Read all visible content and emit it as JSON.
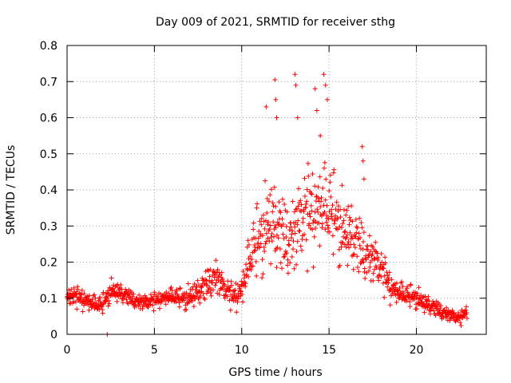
{
  "chart_data": {
    "type": "scatter",
    "title": "Day 009 of 2021, SRMTID for receiver sthg",
    "xlabel": "GPS time / hours",
    "ylabel": "SRMTID / TECUs",
    "xlim": [
      0,
      24
    ],
    "ylim": [
      0,
      0.8
    ],
    "xticks": [
      "0",
      "5",
      "10",
      "15",
      "20"
    ],
    "xtick_values": [
      0,
      5,
      10,
      15,
      20
    ],
    "yticks": [
      "0",
      "0.1",
      "0.2",
      "0.3",
      "0.4",
      "0.5",
      "0.6",
      "0.7",
      "0.8"
    ],
    "ytick_values": [
      0,
      0.1,
      0.2,
      0.3,
      0.4,
      0.5,
      0.6,
      0.7,
      0.8
    ],
    "grid": true,
    "marker": "+",
    "series_color": "#ff0000",
    "series": [
      {
        "name": "SRMTID",
        "envelope_hours": [
          0,
          0.5,
          1,
          1.5,
          2,
          2.5,
          3,
          3.5,
          4,
          4.5,
          5,
          5.5,
          6,
          6.5,
          7,
          7.5,
          8,
          8.5,
          9,
          9.5,
          10,
          10.5,
          11,
          11.5,
          12,
          12.5,
          13,
          13.5,
          14,
          14.5,
          15,
          15.5,
          16,
          16.5,
          17,
          17.5,
          18,
          18.5,
          19,
          19.5,
          20,
          20.5,
          21,
          21.5,
          22,
          22.5,
          23
        ],
        "envelope_median": [
          0.11,
          0.1,
          0.095,
          0.08,
          0.075,
          0.12,
          0.11,
          0.1,
          0.09,
          0.085,
          0.09,
          0.1,
          0.1,
          0.095,
          0.1,
          0.11,
          0.13,
          0.16,
          0.12,
          0.1,
          0.12,
          0.2,
          0.25,
          0.3,
          0.27,
          0.25,
          0.27,
          0.3,
          0.33,
          0.34,
          0.32,
          0.3,
          0.27,
          0.24,
          0.22,
          0.2,
          0.17,
          0.13,
          0.11,
          0.1,
          0.1,
          0.08,
          0.07,
          0.06,
          0.05,
          0.04,
          0.07
        ],
        "envelope_spread": [
          0.03,
          0.03,
          0.035,
          0.03,
          0.03,
          0.035,
          0.03,
          0.025,
          0.025,
          0.025,
          0.025,
          0.025,
          0.03,
          0.03,
          0.04,
          0.04,
          0.05,
          0.06,
          0.04,
          0.04,
          0.06,
          0.09,
          0.12,
          0.14,
          0.13,
          0.12,
          0.13,
          0.14,
          0.15,
          0.15,
          0.14,
          0.13,
          0.11,
          0.1,
          0.09,
          0.08,
          0.06,
          0.05,
          0.04,
          0.035,
          0.035,
          0.03,
          0.025,
          0.025,
          0.02,
          0.02,
          0.02
        ],
        "outliers": [
          {
            "x": 11.4,
            "y": 0.63
          },
          {
            "x": 11.9,
            "y": 0.705
          },
          {
            "x": 11.95,
            "y": 0.65
          },
          {
            "x": 12.0,
            "y": 0.6
          },
          {
            "x": 13.05,
            "y": 0.72
          },
          {
            "x": 13.1,
            "y": 0.69
          },
          {
            "x": 13.2,
            "y": 0.6
          },
          {
            "x": 14.2,
            "y": 0.68
          },
          {
            "x": 14.3,
            "y": 0.62
          },
          {
            "x": 14.7,
            "y": 0.72
          },
          {
            "x": 14.8,
            "y": 0.69
          },
          {
            "x": 14.9,
            "y": 0.65
          },
          {
            "x": 14.5,
            "y": 0.55
          },
          {
            "x": 16.9,
            "y": 0.52
          },
          {
            "x": 16.95,
            "y": 0.48
          },
          {
            "x": 17.0,
            "y": 0.43
          },
          {
            "x": 2.3,
            "y": 0.0
          }
        ]
      }
    ]
  }
}
